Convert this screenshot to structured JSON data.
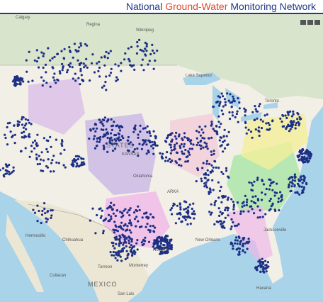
{
  "header": {
    "title": {
      "part1": "National",
      "part2": "Ground-Water",
      "part3": "Monitoring Network"
    }
  },
  "map": {
    "labels": [
      "Calgary",
      "Regina",
      "Winnipeg",
      "STATES",
      "KANSAS",
      "Oklahoma",
      "ARKA",
      "Toronto",
      "Jacksonville",
      "Houston",
      "New Orleans",
      "MEXICO",
      "Chihuahua",
      "Hermosillo",
      "Torreon",
      "Monterrey",
      "San Luis",
      "Havana",
      "Culiacan",
      "Lake Superior"
    ]
  }
}
